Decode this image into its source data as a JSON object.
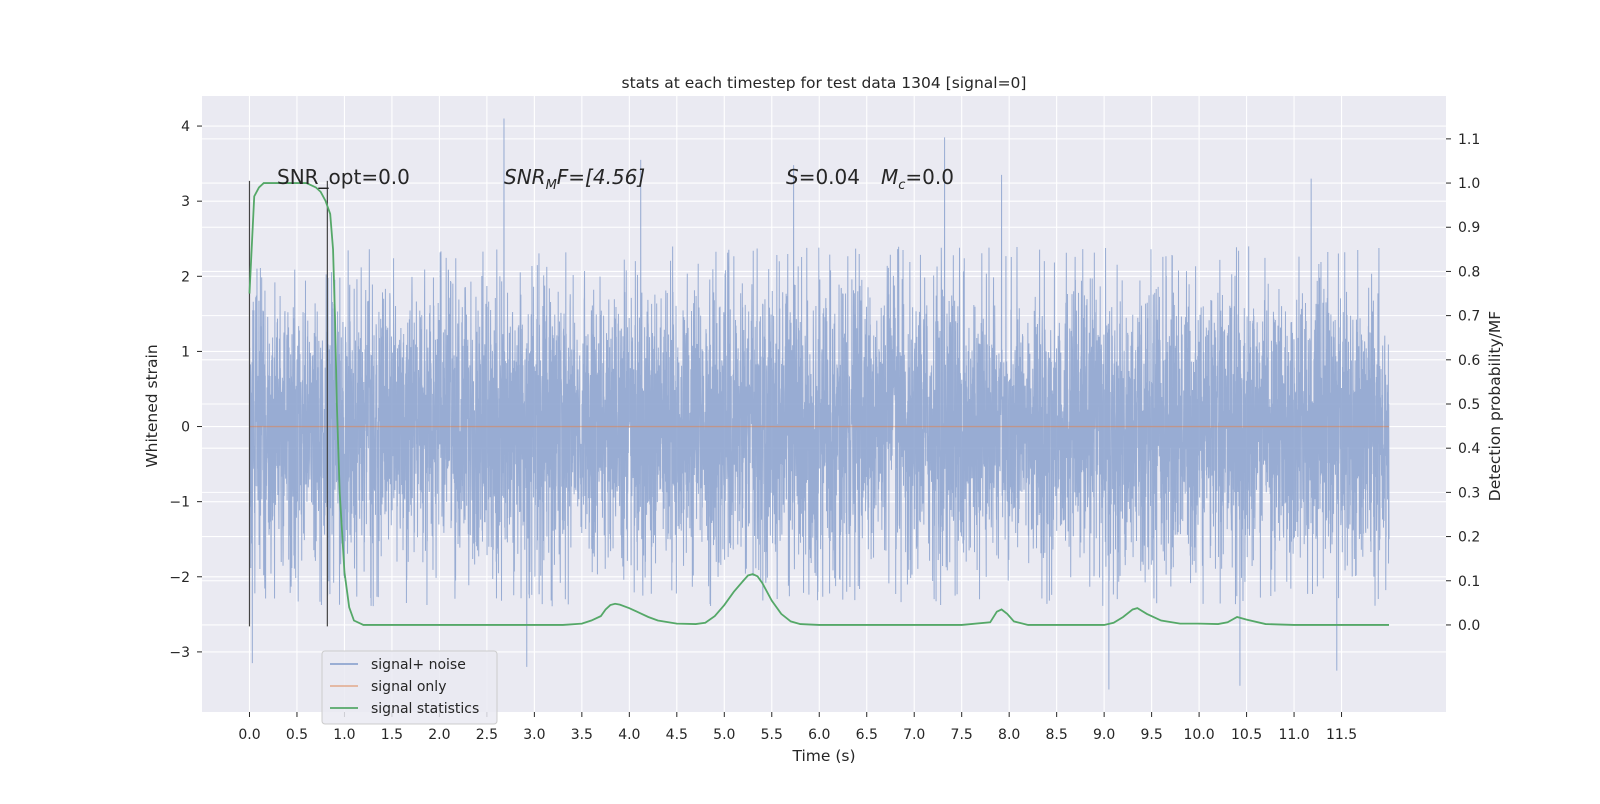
{
  "chart_data": {
    "type": "line",
    "title": "stats at each timestep for test data 1304 [signal=0]",
    "xlabel": "Time (s)",
    "ylabel": "Whitened strain",
    "y2label": "Detection probability/MF",
    "xlim": [
      -0.5,
      12.6
    ],
    "ylim": [
      -3.8,
      4.4
    ],
    "y2lim": [
      -0.197,
      1.197
    ],
    "xticks": [
      "0.0",
      "0.5",
      "1.0",
      "1.5",
      "2.0",
      "2.5",
      "3.0",
      "3.5",
      "4.0",
      "4.5",
      "5.0",
      "5.5",
      "6.0",
      "6.5",
      "7.0",
      "7.5",
      "8.0",
      "8.5",
      "9.0",
      "9.5",
      "10.0",
      "10.5",
      "11.0",
      "11.5"
    ],
    "yticks": [
      "4",
      "3",
      "2",
      "1",
      "0",
      "−1",
      "−2",
      "−3"
    ],
    "y2ticks": [
      "1.1",
      "1.0",
      "0.9",
      "0.8",
      "0.7",
      "0.6",
      "0.5",
      "0.4",
      "0.3",
      "0.2",
      "0.1",
      "0.0"
    ],
    "grid": true,
    "legend": {
      "placement": "lower-left",
      "entries": [
        {
          "label": "signal+ noise",
          "color": "#8fa5cf"
        },
        {
          "label": "signal only",
          "color": "#dd8452"
        },
        {
          "label": "signal statistics",
          "color": "#55a868"
        }
      ]
    },
    "annotations": {
      "snr_opt": "SNR_opt=0.0",
      "snr_mf_main": "SNR",
      "snr_mf_sub": "M",
      "snr_mf_rest": "F=[4.56]",
      "s_sym": "S",
      "s_val": "=0.04",
      "mc_sym": "M",
      "mc_sub": "c",
      "mc_val": "=0.0"
    },
    "vertical_markers": [
      0.0,
      0.82
    ],
    "series": [
      {
        "name": "signal+ noise",
        "color": "#8fa5cf",
        "t_start": 0.0,
        "t_end": 12.0,
        "typical_range": [
          -2.4,
          2.4
        ],
        "notable_peaks": [
          {
            "x": 2.68,
            "y": 4.1
          },
          {
            "x": 7.32,
            "y": 3.85
          },
          {
            "x": 4.12,
            "y": 3.55
          },
          {
            "x": 5.73,
            "y": 3.48
          },
          {
            "x": 7.92,
            "y": 3.35
          },
          {
            "x": 11.18,
            "y": 3.3
          },
          {
            "x": 9.05,
            "y": -3.5
          },
          {
            "x": 10.43,
            "y": -3.45
          },
          {
            "x": 0.03,
            "y": -3.15
          },
          {
            "x": 11.45,
            "y": -3.25
          },
          {
            "x": 2.92,
            "y": -3.2
          }
        ]
      },
      {
        "name": "signal only",
        "color": "#dd8452",
        "x": [
          0.0,
          12.0
        ],
        "y": [
          0.0,
          0.0
        ]
      },
      {
        "name": "signal statistics",
        "color": "#55a868",
        "axis": "right",
        "x": [
          0.0,
          0.05,
          0.1,
          0.15,
          0.2,
          0.3,
          0.4,
          0.5,
          0.6,
          0.7,
          0.75,
          0.8,
          0.85,
          0.88,
          0.9,
          0.92,
          0.95,
          1.0,
          1.05,
          1.1,
          1.2,
          1.5,
          2.0,
          2.5,
          3.0,
          3.3,
          3.5,
          3.6,
          3.7,
          3.75,
          3.8,
          3.85,
          3.9,
          4.0,
          4.1,
          4.2,
          4.3,
          4.5,
          4.7,
          4.8,
          4.9,
          5.0,
          5.1,
          5.2,
          5.25,
          5.3,
          5.35,
          5.4,
          5.5,
          5.6,
          5.7,
          5.8,
          6.0,
          6.5,
          7.0,
          7.5,
          7.8,
          7.87,
          7.92,
          7.98,
          8.05,
          8.2,
          8.5,
          9.0,
          9.1,
          9.2,
          9.3,
          9.35,
          9.45,
          9.6,
          9.8,
          10.0,
          10.2,
          10.3,
          10.4,
          10.5,
          10.7,
          11.0,
          11.5,
          12.0
        ],
        "y": [
          0.75,
          0.97,
          0.99,
          1.0,
          1.0,
          1.0,
          1.0,
          1.0,
          1.0,
          0.99,
          0.98,
          0.96,
          0.93,
          0.85,
          0.7,
          0.5,
          0.3,
          0.12,
          0.04,
          0.01,
          0.0,
          0.0,
          0.0,
          0.0,
          0.0,
          0.0,
          0.003,
          0.01,
          0.02,
          0.035,
          0.045,
          0.048,
          0.046,
          0.038,
          0.028,
          0.018,
          0.01,
          0.003,
          0.002,
          0.005,
          0.02,
          0.045,
          0.075,
          0.1,
          0.112,
          0.115,
          0.11,
          0.095,
          0.055,
          0.025,
          0.008,
          0.002,
          0.0,
          0.0,
          0.0,
          0.0,
          0.006,
          0.03,
          0.035,
          0.025,
          0.008,
          0.0,
          0.0,
          0.0,
          0.005,
          0.018,
          0.035,
          0.038,
          0.025,
          0.01,
          0.003,
          0.003,
          0.002,
          0.006,
          0.018,
          0.012,
          0.002,
          0.0,
          0.0,
          0.0
        ]
      }
    ]
  }
}
